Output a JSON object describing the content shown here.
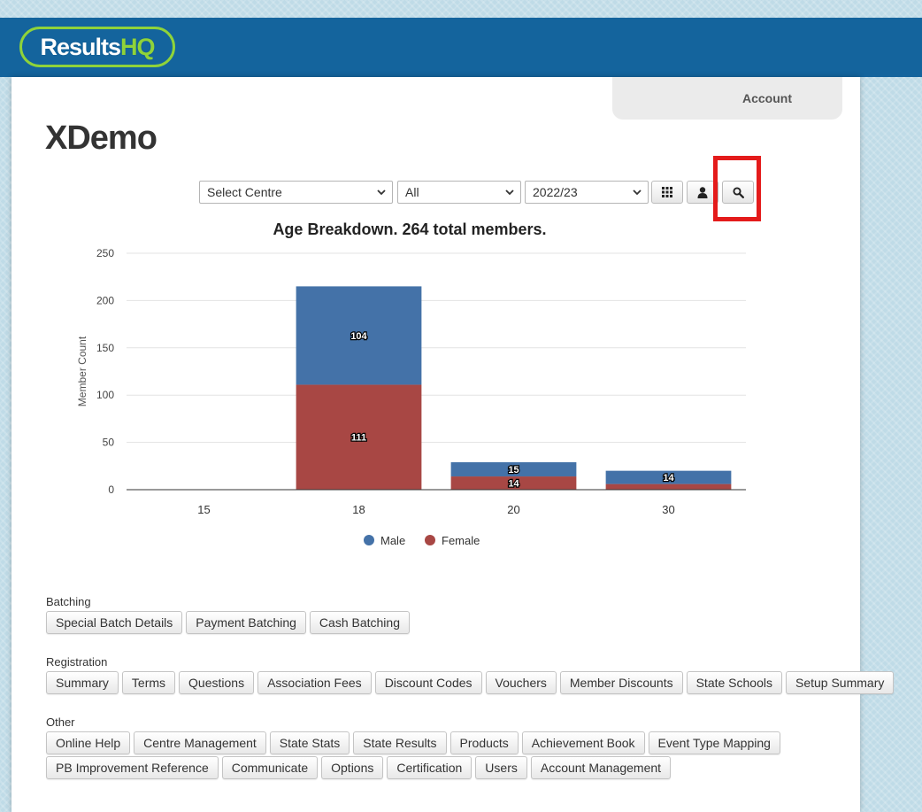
{
  "header": {
    "logo_main": "Results",
    "logo_accent": "HQ",
    "account_label": "Account"
  },
  "page": {
    "title": "XDemo"
  },
  "filters": {
    "centre": "Select Centre",
    "group": "All",
    "season": "2022/23"
  },
  "toolbar": {
    "grid_icon": "grid-icon",
    "user_icon": "user-icon",
    "search_icon": "search-icon"
  },
  "chart_data": {
    "type": "bar",
    "stacked": true,
    "title": "Age Breakdown. 264 total members.",
    "ylabel": "Member Count",
    "xlabel": "",
    "ylim": [
      0,
      250
    ],
    "yticks": [
      0,
      50,
      100,
      150,
      200,
      250
    ],
    "categories": [
      "15",
      "18",
      "20",
      "30"
    ],
    "series": [
      {
        "name": "Female",
        "color": "#a84744",
        "values": [
          0,
          111,
          14,
          6
        ],
        "labels": [
          "",
          "111",
          "14",
          ""
        ]
      },
      {
        "name": "Male",
        "color": "#4472a8",
        "values": [
          0,
          104,
          15,
          14
        ],
        "labels": [
          "",
          "104",
          "15",
          "14"
        ]
      }
    ],
    "legend": [
      "Male",
      "Female"
    ],
    "legend_position": "bottom"
  },
  "sections": [
    {
      "label": "Batching",
      "rows": [
        [
          "Special Batch Details",
          "Payment Batching",
          "Cash Batching"
        ]
      ]
    },
    {
      "label": "Registration",
      "rows": [
        [
          "Summary",
          "Terms",
          "Questions",
          "Association Fees",
          "Discount Codes",
          "Vouchers",
          "Member Discounts",
          "State Schools",
          "Setup Summary"
        ]
      ]
    },
    {
      "label": "Other",
      "rows": [
        [
          "Online Help",
          "Centre Management",
          "State Stats",
          "State Results",
          "Products",
          "Achievement Book",
          "Event Type Mapping"
        ],
        [
          "PB Improvement Reference",
          "Communicate",
          "Options",
          "Certification",
          "Users",
          "Account Management"
        ]
      ]
    }
  ]
}
